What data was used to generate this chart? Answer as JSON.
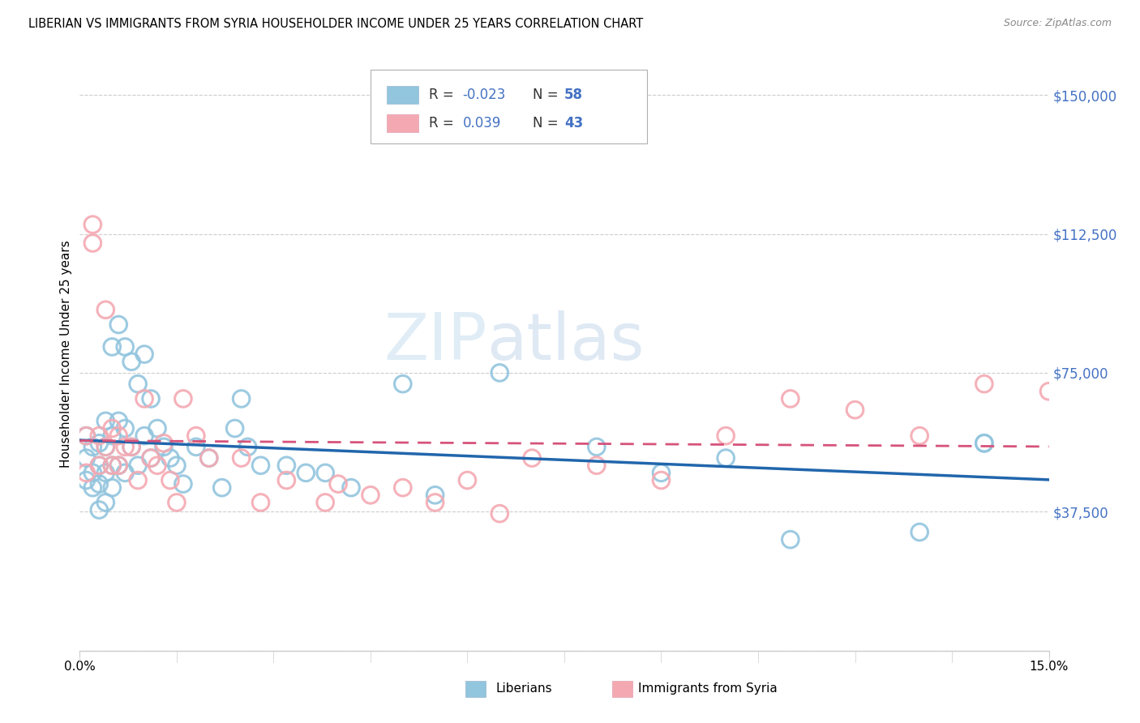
{
  "title": "LIBERIAN VS IMMIGRANTS FROM SYRIA HOUSEHOLDER INCOME UNDER 25 YEARS CORRELATION CHART",
  "source": "Source: ZipAtlas.com",
  "ylabel": "Householder Income Under 25 years",
  "xlim": [
    0.0,
    0.15
  ],
  "ylim": [
    0,
    160000
  ],
  "liberian_color": "#92c5de",
  "syria_color": "#f4a9b2",
  "liberian_line_color": "#2166ac",
  "syria_line_color": "#d6537a",
  "watermark_zip": "ZIP",
  "watermark_atlas": "atlas",
  "lib_x": [
    0.001,
    0.001,
    0.001,
    0.002,
    0.002,
    0.002,
    0.003,
    0.003,
    0.003,
    0.003,
    0.004,
    0.004,
    0.004,
    0.004,
    0.005,
    0.005,
    0.005,
    0.005,
    0.006,
    0.006,
    0.006,
    0.007,
    0.007,
    0.007,
    0.008,
    0.008,
    0.009,
    0.009,
    0.01,
    0.01,
    0.011,
    0.011,
    0.012,
    0.013,
    0.014,
    0.015,
    0.016,
    0.018,
    0.02,
    0.022,
    0.024,
    0.025,
    0.026,
    0.028,
    0.032,
    0.035,
    0.038,
    0.042,
    0.05,
    0.055,
    0.065,
    0.08,
    0.09,
    0.1,
    0.11,
    0.13,
    0.14,
    0.14
  ],
  "lib_y": [
    58000,
    52000,
    46000,
    55000,
    48000,
    44000,
    56000,
    50000,
    45000,
    38000,
    62000,
    55000,
    48000,
    40000,
    82000,
    58000,
    50000,
    44000,
    88000,
    62000,
    50000,
    82000,
    60000,
    48000,
    78000,
    55000,
    72000,
    50000,
    80000,
    58000,
    68000,
    52000,
    60000,
    55000,
    52000,
    50000,
    45000,
    55000,
    52000,
    44000,
    60000,
    68000,
    55000,
    50000,
    50000,
    48000,
    48000,
    44000,
    72000,
    42000,
    75000,
    55000,
    48000,
    52000,
    30000,
    32000,
    56000,
    56000
  ],
  "syr_x": [
    0.001,
    0.001,
    0.002,
    0.002,
    0.003,
    0.003,
    0.004,
    0.004,
    0.005,
    0.005,
    0.006,
    0.006,
    0.007,
    0.008,
    0.009,
    0.01,
    0.011,
    0.012,
    0.013,
    0.014,
    0.015,
    0.016,
    0.018,
    0.02,
    0.025,
    0.028,
    0.032,
    0.038,
    0.04,
    0.045,
    0.05,
    0.055,
    0.06,
    0.065,
    0.07,
    0.08,
    0.09,
    0.1,
    0.11,
    0.12,
    0.13,
    0.14,
    0.15
  ],
  "syr_y": [
    58000,
    48000,
    115000,
    110000,
    58000,
    50000,
    92000,
    55000,
    60000,
    50000,
    58000,
    50000,
    55000,
    55000,
    46000,
    68000,
    52000,
    50000,
    56000,
    46000,
    40000,
    68000,
    58000,
    52000,
    52000,
    40000,
    46000,
    40000,
    45000,
    42000,
    44000,
    40000,
    46000,
    37000,
    52000,
    50000,
    46000,
    58000,
    68000,
    65000,
    58000,
    72000,
    70000
  ]
}
